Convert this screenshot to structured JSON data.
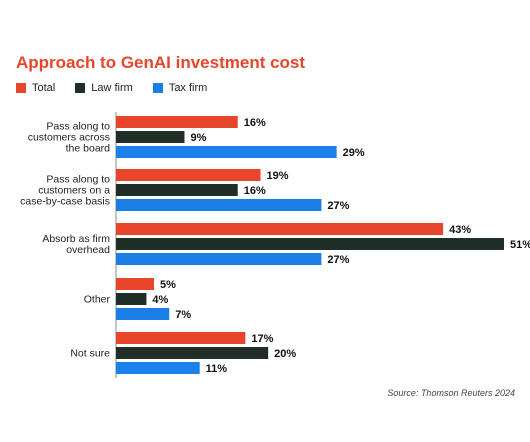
{
  "title": "Approach to GenAI investment cost",
  "source": "Source: Thomson Reuters 2024",
  "chart_data": {
    "type": "bar",
    "orientation": "horizontal",
    "title": "Approach to GenAI investment cost",
    "categories": [
      [
        "Pass along to",
        "customers across",
        "the board"
      ],
      [
        "Pass along to",
        "customers on a",
        "case-by-case basis"
      ],
      [
        "Absorb as firm",
        "overhead"
      ],
      [
        "Other"
      ],
      [
        "Not sure"
      ]
    ],
    "series": [
      {
        "name": "Total",
        "color": "#e8462a",
        "values": [
          16,
          19,
          43,
          5,
          17
        ]
      },
      {
        "name": "Law firm",
        "color": "#1f2e26",
        "values": [
          9,
          16,
          51,
          4,
          20
        ]
      },
      {
        "name": "Tax firm",
        "color": "#1a7fe6",
        "values": [
          29,
          27,
          27,
          7,
          11
        ]
      }
    ],
    "value_suffix": "%",
    "xlim": [
      0,
      51
    ],
    "legend_position": "top-left"
  }
}
